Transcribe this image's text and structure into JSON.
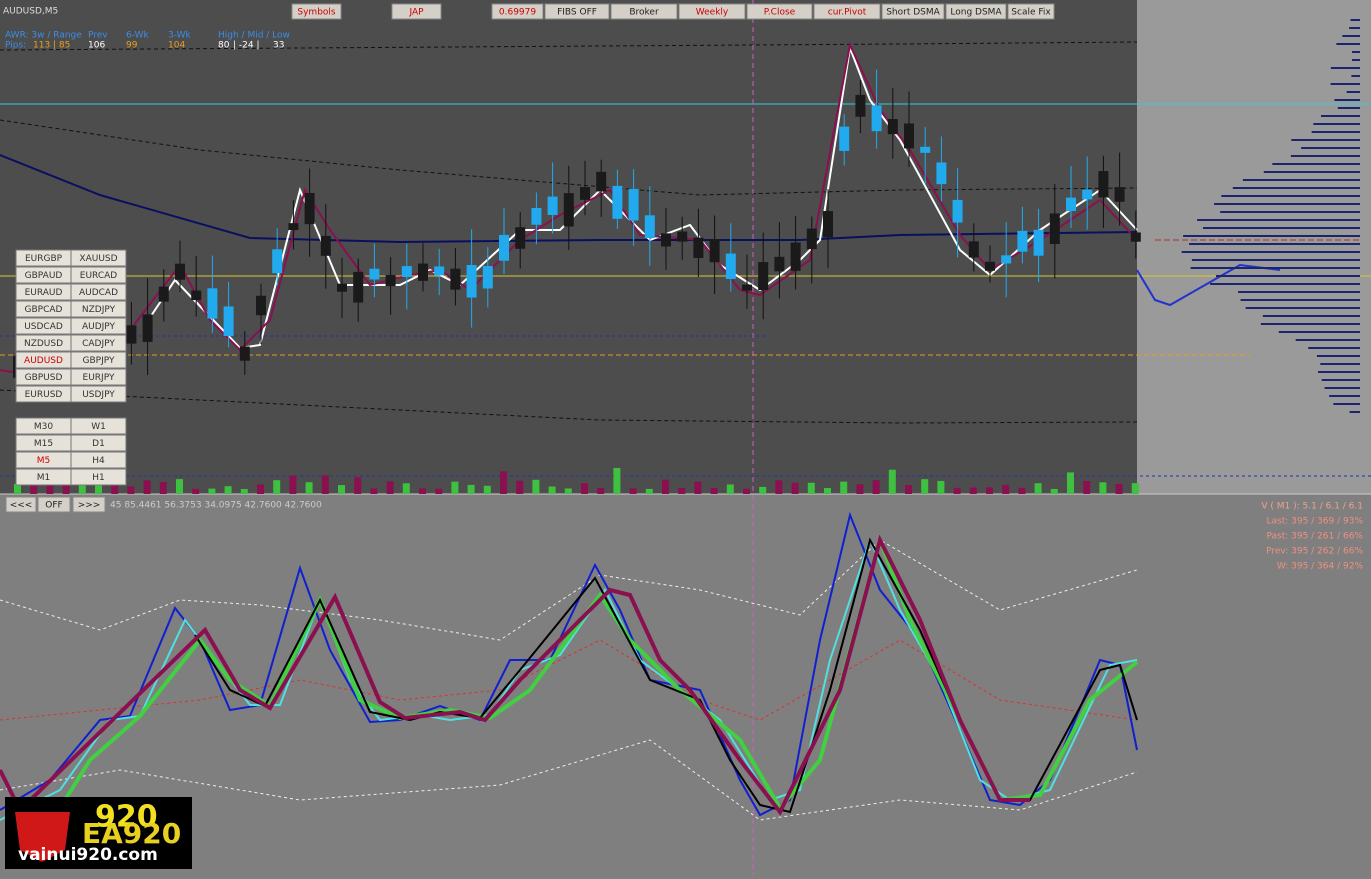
{
  "header": {
    "symbol": "AUDUSD,M5",
    "buttons": [
      "Symbols",
      "JAP",
      "0.69979",
      "FIBS OFF",
      "Broker",
      "Weekly",
      "P.Close",
      "cur.Pivot",
      "Short DSMA",
      "Long DSMA",
      "Scale Fix"
    ]
  },
  "info": {
    "labels": [
      "AWR: 3w / Range",
      "Prev",
      "6-Wk",
      "3-Wk",
      "High / Mid / Low"
    ],
    "pips_label": "Pips:",
    "values": [
      "113 | 85",
      "106",
      "99",
      "104"
    ],
    "hml": [
      "80",
      "| -24 |",
      "33"
    ]
  },
  "symbols": [
    [
      "EURGBP",
      "XAUUSD"
    ],
    [
      "GBPAUD",
      "EURCAD"
    ],
    [
      "EURAUD",
      "AUDCAD"
    ],
    [
      "GBPCAD",
      "NZDJPY"
    ],
    [
      "USDCAD",
      "AUDJPY"
    ],
    [
      "NZDUSD",
      "CADJPY"
    ],
    [
      "AUDUSD",
      "GBPJPY"
    ],
    [
      "GBPUSD",
      "EURJPY"
    ],
    [
      "EURUSD",
      "USDJPY"
    ]
  ],
  "timeframes": [
    [
      "M30",
      "W1"
    ],
    [
      "M15",
      "D1"
    ],
    [
      "M5",
      "H4"
    ],
    [
      "M1",
      "H1"
    ]
  ],
  "nav": [
    "<<<",
    "OFF",
    ">>>"
  ],
  "indicator_values": "45 85.4461 56.3753 34.0975 42.7600 42.7600",
  "stats": [
    "V ( M1 ): 5.1 / 6.1 / 6.1",
    "Last: 395 / 369 / 93%",
    "Past: 395 / 261 / 66%",
    "Prev: 395 / 262 / 66%",
    "W: 395 / 364 / 92%"
  ],
  "logo": {
    "big": "920",
    "brand": "EA920",
    "site": "vainui920.com"
  }
}
